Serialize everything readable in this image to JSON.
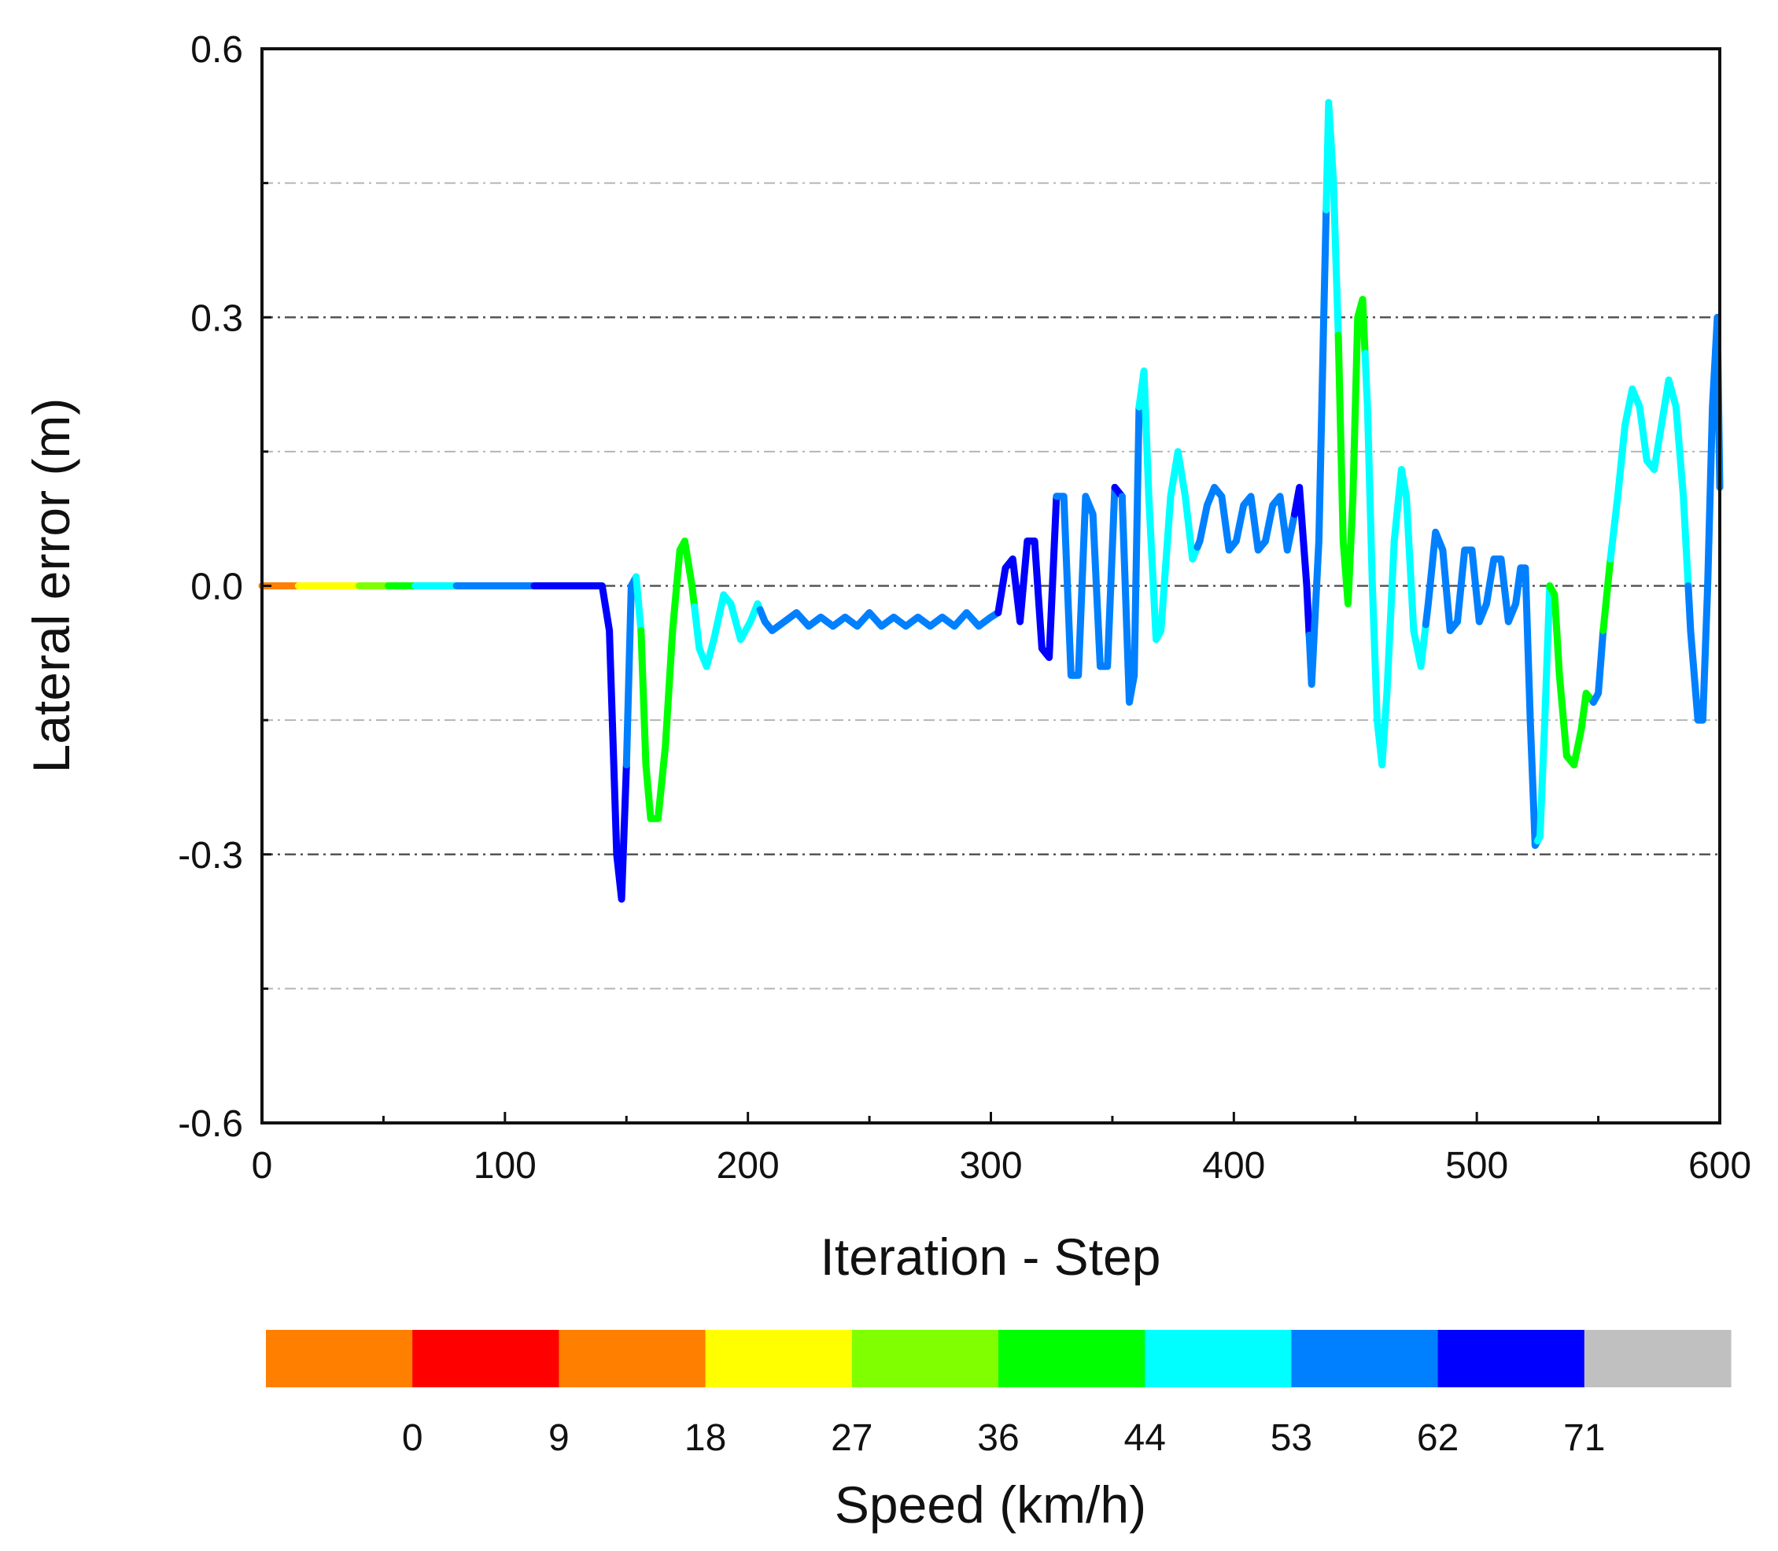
{
  "chart_data": {
    "type": "line",
    "title": "",
    "xlabel": "Iteration - Step",
    "ylabel": "Lateral error (m)",
    "xlim": [
      0,
      600
    ],
    "ylim": [
      -0.6,
      0.6
    ],
    "x_ticks": [
      0,
      100,
      200,
      300,
      400,
      500,
      600
    ],
    "x_tick_labels": [
      "0",
      "100",
      "200",
      "300",
      "400",
      "500",
      "600"
    ],
    "y_ticks": [
      -0.6,
      -0.3,
      0.0,
      0.3,
      0.6
    ],
    "y_tick_labels": [
      "-0.6",
      "-0.3",
      "0.0",
      "0.3",
      "0.6"
    ],
    "y_minor_gridlines": [
      -0.45,
      -0.15,
      0.15,
      0.45
    ],
    "grid": "horizontal dash-dot",
    "series": [
      {
        "name": "Lateral error",
        "color_by": "speed",
        "points": [
          [
            0,
            0.0
          ],
          [
            15,
            0.0
          ],
          [
            30,
            0.0
          ],
          [
            45,
            0.0
          ],
          [
            60,
            0.0
          ],
          [
            75,
            0.0
          ],
          [
            90,
            0.0
          ],
          [
            105,
            0.0
          ],
          [
            120,
            0.0
          ],
          [
            130,
            0.0
          ],
          [
            140,
            0.0
          ],
          [
            143,
            -0.05
          ],
          [
            146,
            -0.3
          ],
          [
            148,
            -0.35
          ],
          [
            150,
            -0.2
          ],
          [
            152,
            0.0
          ],
          [
            154,
            0.01
          ],
          [
            156,
            -0.05
          ],
          [
            158,
            -0.2
          ],
          [
            160,
            -0.26
          ],
          [
            163,
            -0.26
          ],
          [
            166,
            -0.18
          ],
          [
            169,
            -0.05
          ],
          [
            172,
            0.04
          ],
          [
            174,
            0.05
          ],
          [
            177,
            0.0
          ],
          [
            180,
            -0.07
          ],
          [
            183,
            -0.09
          ],
          [
            186,
            -0.06
          ],
          [
            190,
            -0.01
          ],
          [
            193,
            -0.02
          ],
          [
            197,
            -0.06
          ],
          [
            201,
            -0.04
          ],
          [
            204,
            -0.02
          ],
          [
            207,
            -0.04
          ],
          [
            210,
            -0.05
          ],
          [
            215,
            -0.04
          ],
          [
            220,
            -0.03
          ],
          [
            225,
            -0.045
          ],
          [
            230,
            -0.035
          ],
          [
            235,
            -0.045
          ],
          [
            240,
            -0.035
          ],
          [
            245,
            -0.045
          ],
          [
            250,
            -0.03
          ],
          [
            255,
            -0.045
          ],
          [
            260,
            -0.035
          ],
          [
            265,
            -0.045
          ],
          [
            270,
            -0.035
          ],
          [
            275,
            -0.045
          ],
          [
            280,
            -0.035
          ],
          [
            285,
            -0.045
          ],
          [
            290,
            -0.03
          ],
          [
            295,
            -0.045
          ],
          [
            300,
            -0.035
          ],
          [
            303,
            -0.03
          ],
          [
            306,
            0.02
          ],
          [
            309,
            0.03
          ],
          [
            312,
            -0.04
          ],
          [
            315,
            0.05
          ],
          [
            318,
            0.05
          ],
          [
            321,
            -0.07
          ],
          [
            324,
            -0.08
          ],
          [
            327,
            0.1
          ],
          [
            330,
            0.1
          ],
          [
            333,
            -0.1
          ],
          [
            336,
            -0.1
          ],
          [
            339,
            0.1
          ],
          [
            342,
            0.08
          ],
          [
            345,
            -0.09
          ],
          [
            348,
            -0.09
          ],
          [
            351,
            0.11
          ],
          [
            354,
            0.1
          ],
          [
            357,
            -0.13
          ],
          [
            359,
            -0.1
          ],
          [
            361,
            0.2
          ],
          [
            363,
            0.24
          ],
          [
            365,
            0.1
          ],
          [
            368,
            -0.06
          ],
          [
            370,
            -0.05
          ],
          [
            374,
            0.1
          ],
          [
            377,
            0.15
          ],
          [
            380,
            0.1
          ],
          [
            383,
            0.03
          ],
          [
            386,
            0.05
          ],
          [
            389,
            0.09
          ],
          [
            392,
            0.11
          ],
          [
            395,
            0.1
          ],
          [
            398,
            0.04
          ],
          [
            401,
            0.05
          ],
          [
            404,
            0.09
          ],
          [
            407,
            0.1
          ],
          [
            410,
            0.04
          ],
          [
            413,
            0.05
          ],
          [
            416,
            0.09
          ],
          [
            419,
            0.1
          ],
          [
            422,
            0.04
          ],
          [
            425,
            0.08
          ],
          [
            427,
            0.11
          ],
          [
            430,
            0.0
          ],
          [
            432,
            -0.11
          ],
          [
            435,
            0.05
          ],
          [
            437,
            0.3
          ],
          [
            439,
            0.54
          ],
          [
            441,
            0.45
          ],
          [
            443,
            0.28
          ],
          [
            445,
            0.05
          ],
          [
            447,
            -0.02
          ],
          [
            449,
            0.1
          ],
          [
            451,
            0.3
          ],
          [
            453,
            0.32
          ],
          [
            455,
            0.2
          ],
          [
            457,
            0.0
          ],
          [
            459,
            -0.15
          ],
          [
            461,
            -0.2
          ],
          [
            463,
            -0.12
          ],
          [
            466,
            0.05
          ],
          [
            469,
            0.13
          ],
          [
            471,
            0.1
          ],
          [
            474,
            -0.05
          ],
          [
            477,
            -0.09
          ],
          [
            480,
            -0.02
          ],
          [
            483,
            0.06
          ],
          [
            486,
            0.04
          ],
          [
            489,
            -0.05
          ],
          [
            492,
            -0.04
          ],
          [
            495,
            0.04
          ],
          [
            498,
            0.04
          ],
          [
            501,
            -0.04
          ],
          [
            504,
            -0.02
          ],
          [
            507,
            0.03
          ],
          [
            510,
            0.03
          ],
          [
            513,
            -0.04
          ],
          [
            516,
            -0.02
          ],
          [
            518,
            0.02
          ],
          [
            520,
            0.02
          ],
          [
            522,
            -0.15
          ],
          [
            524,
            -0.29
          ],
          [
            526,
            -0.28
          ],
          [
            528,
            -0.15
          ],
          [
            530,
            0.0
          ],
          [
            532,
            -0.01
          ],
          [
            534,
            -0.1
          ],
          [
            537,
            -0.19
          ],
          [
            540,
            -0.2
          ],
          [
            543,
            -0.16
          ],
          [
            545,
            -0.12
          ],
          [
            548,
            -0.13
          ],
          [
            550,
            -0.12
          ],
          [
            552,
            -0.05
          ],
          [
            555,
            0.03
          ],
          [
            558,
            0.1
          ],
          [
            561,
            0.18
          ],
          [
            564,
            0.22
          ],
          [
            567,
            0.2
          ],
          [
            570,
            0.14
          ],
          [
            573,
            0.13
          ],
          [
            576,
            0.18
          ],
          [
            579,
            0.23
          ],
          [
            582,
            0.2
          ],
          [
            585,
            0.1
          ],
          [
            588,
            -0.05
          ],
          [
            591,
            -0.15
          ],
          [
            593,
            -0.15
          ],
          [
            595,
            0.0
          ],
          [
            597,
            0.2
          ],
          [
            599,
            0.3
          ],
          [
            600,
            0.11
          ]
        ],
        "speed_segments": [
          {
            "x_start": 0,
            "x_end": 15,
            "color": "#ff7f00"
          },
          {
            "x_start": 15,
            "x_end": 40,
            "color": "#ffff00"
          },
          {
            "x_start": 40,
            "x_end": 52,
            "color": "#80ff00"
          },
          {
            "x_start": 52,
            "x_end": 63,
            "color": "#00ff00"
          },
          {
            "x_start": 63,
            "x_end": 80,
            "color": "#00ffff"
          },
          {
            "x_start": 80,
            "x_end": 112,
            "color": "#0080ff"
          },
          {
            "x_start": 112,
            "x_end": 150,
            "color": "#0000ff"
          },
          {
            "x_start": 150,
            "x_end": 154,
            "color": "#0080ff"
          },
          {
            "x_start": 154,
            "x_end": 156,
            "color": "#00ffff"
          },
          {
            "x_start": 156,
            "x_end": 178,
            "color": "#00ff00"
          },
          {
            "x_start": 178,
            "x_end": 205,
            "color": "#00ffff"
          },
          {
            "x_start": 205,
            "x_end": 303,
            "color": "#0080ff"
          },
          {
            "x_start": 303,
            "x_end": 327,
            "color": "#0000ff"
          },
          {
            "x_start": 327,
            "x_end": 351,
            "color": "#0080ff"
          },
          {
            "x_start": 351,
            "x_end": 354,
            "color": "#0000ff"
          },
          {
            "x_start": 354,
            "x_end": 361,
            "color": "#0080ff"
          },
          {
            "x_start": 361,
            "x_end": 385,
            "color": "#00ffff"
          },
          {
            "x_start": 385,
            "x_end": 425,
            "color": "#0080ff"
          },
          {
            "x_start": 425,
            "x_end": 431,
            "color": "#0000ff"
          },
          {
            "x_start": 431,
            "x_end": 438,
            "color": "#0080ff"
          },
          {
            "x_start": 438,
            "x_end": 443,
            "color": "#00ffff"
          },
          {
            "x_start": 443,
            "x_end": 454,
            "color": "#00ff00"
          },
          {
            "x_start": 454,
            "x_end": 479,
            "color": "#00ffff"
          },
          {
            "x_start": 479,
            "x_end": 525,
            "color": "#0080ff"
          },
          {
            "x_start": 525,
            "x_end": 530,
            "color": "#00ffff"
          },
          {
            "x_start": 530,
            "x_end": 548,
            "color": "#00ff00"
          },
          {
            "x_start": 548,
            "x_end": 552,
            "color": "#0080ff"
          },
          {
            "x_start": 552,
            "x_end": 555,
            "color": "#00ff00"
          },
          {
            "x_start": 555,
            "x_end": 587,
            "color": "#00ffff"
          },
          {
            "x_start": 587,
            "x_end": 600,
            "color": "#0080ff"
          }
        ]
      }
    ],
    "colorbar": {
      "title": "Speed (km/h)",
      "colors": [
        "#ff7f00",
        "#ff0000",
        "#ff7f00",
        "#ffff00",
        "#80ff00",
        "#00ff00",
        "#00ffff",
        "#0080ff",
        "#0000ff",
        "#c0c0c0"
      ],
      "tick_labels": [
        "0",
        "9",
        "18",
        "27",
        "36",
        "44",
        "53",
        "62",
        "71"
      ]
    }
  }
}
